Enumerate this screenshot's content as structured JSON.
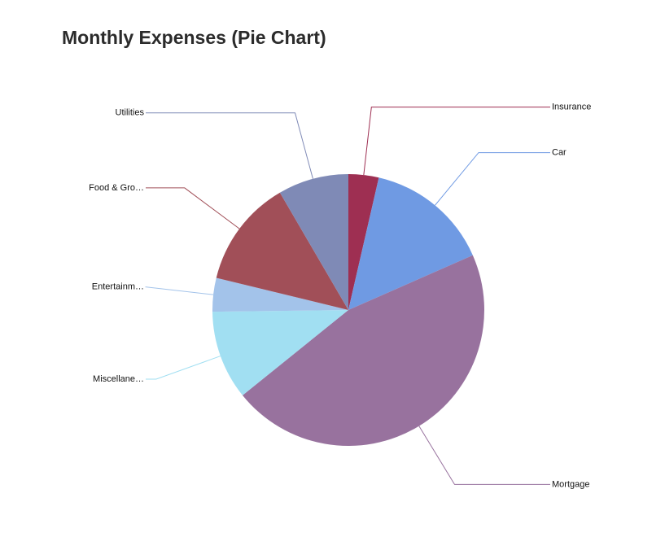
{
  "chart_data": {
    "type": "pie",
    "title": "Monthly Expenses (Pie Chart)",
    "categories": [
      "Insurance",
      "Car",
      "Mortgage",
      "Miscellane…",
      "Entertainm…",
      "Food & Gro…",
      "Utilities"
    ],
    "values": [
      3.6,
      14.8,
      45.8,
      10.6,
      4.0,
      12.8,
      8.4
    ],
    "colors": [
      "#9e2f52",
      "#6f9ae3",
      "#98729e",
      "#a1dff2",
      "#a3c3ea",
      "#a14f58",
      "#7f8ab6"
    ]
  }
}
